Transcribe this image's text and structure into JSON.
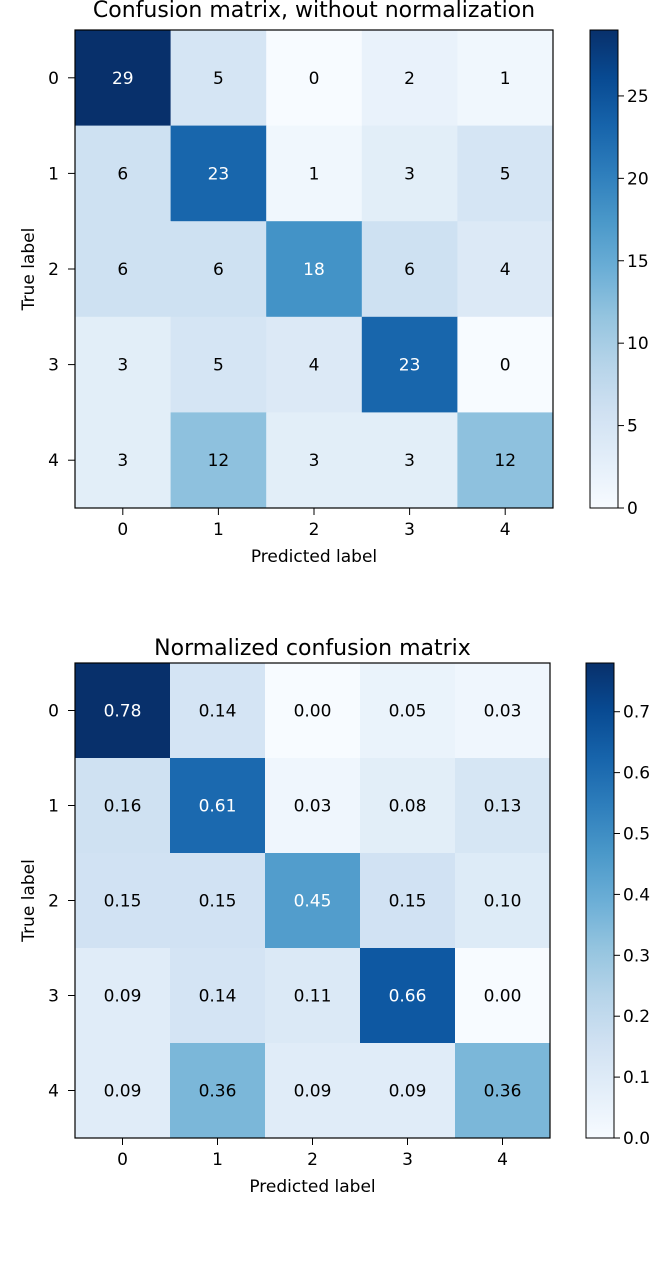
{
  "chart_data": [
    {
      "type": "heatmap",
      "title": "Confusion matrix, without normalization",
      "xlabel": "Predicted label",
      "ylabel": "True label",
      "x_ticks": [
        "0",
        "1",
        "2",
        "3",
        "4"
      ],
      "y_ticks": [
        "0",
        "1",
        "2",
        "3",
        "4"
      ],
      "values": [
        [
          29,
          5,
          0,
          2,
          1
        ],
        [
          6,
          23,
          1,
          3,
          5
        ],
        [
          6,
          6,
          18,
          6,
          4
        ],
        [
          3,
          5,
          4,
          23,
          0
        ],
        [
          3,
          12,
          3,
          3,
          12
        ]
      ],
      "cell_labels": [
        [
          "29",
          "5",
          "0",
          "2",
          "1"
        ],
        [
          "6",
          "23",
          "1",
          "3",
          "5"
        ],
        [
          "6",
          "6",
          "18",
          "6",
          "4"
        ],
        [
          "3",
          "5",
          "4",
          "23",
          "0"
        ],
        [
          "3",
          "12",
          "3",
          "3",
          "12"
        ]
      ],
      "vmin": 0,
      "vmax": 29,
      "colormap": "Blues",
      "colorbar_ticks": [
        {
          "value": 0,
          "label": "0"
        },
        {
          "value": 5,
          "label": "5"
        },
        {
          "value": 10,
          "label": "10"
        },
        {
          "value": 15,
          "label": "15"
        },
        {
          "value": 20,
          "label": "20"
        },
        {
          "value": 25,
          "label": "25"
        }
      ],
      "legend": "colorbar-right",
      "grid": false
    },
    {
      "type": "heatmap",
      "title": "Normalized confusion matrix",
      "xlabel": "Predicted label",
      "ylabel": "True label",
      "x_ticks": [
        "0",
        "1",
        "2",
        "3",
        "4"
      ],
      "y_ticks": [
        "0",
        "1",
        "2",
        "3",
        "4"
      ],
      "values": [
        [
          0.78,
          0.14,
          0.0,
          0.05,
          0.03
        ],
        [
          0.16,
          0.61,
          0.03,
          0.08,
          0.13
        ],
        [
          0.15,
          0.15,
          0.45,
          0.15,
          0.1
        ],
        [
          0.09,
          0.14,
          0.11,
          0.66,
          0.0
        ],
        [
          0.09,
          0.36,
          0.09,
          0.09,
          0.36
        ]
      ],
      "cell_labels": [
        [
          "0.78",
          "0.14",
          "0.00",
          "0.05",
          "0.03"
        ],
        [
          "0.16",
          "0.61",
          "0.03",
          "0.08",
          "0.13"
        ],
        [
          "0.15",
          "0.15",
          "0.45",
          "0.15",
          "0.10"
        ],
        [
          "0.09",
          "0.14",
          "0.11",
          "0.66",
          "0.00"
        ],
        [
          "0.09",
          "0.36",
          "0.09",
          "0.09",
          "0.36"
        ]
      ],
      "vmin": 0,
      "vmax": 0.78,
      "colormap": "Blues",
      "colorbar_ticks": [
        {
          "value": 0.0,
          "label": "0.0"
        },
        {
          "value": 0.1,
          "label": "0.1"
        },
        {
          "value": 0.2,
          "label": "0.2"
        },
        {
          "value": 0.3,
          "label": "0.3"
        },
        {
          "value": 0.4,
          "label": "0.4"
        },
        {
          "value": 0.5,
          "label": "0.5"
        },
        {
          "value": 0.6,
          "label": "0.6"
        },
        {
          "value": 0.7,
          "label": "0.7"
        }
      ],
      "legend": "colorbar-right",
      "grid": false
    }
  ]
}
